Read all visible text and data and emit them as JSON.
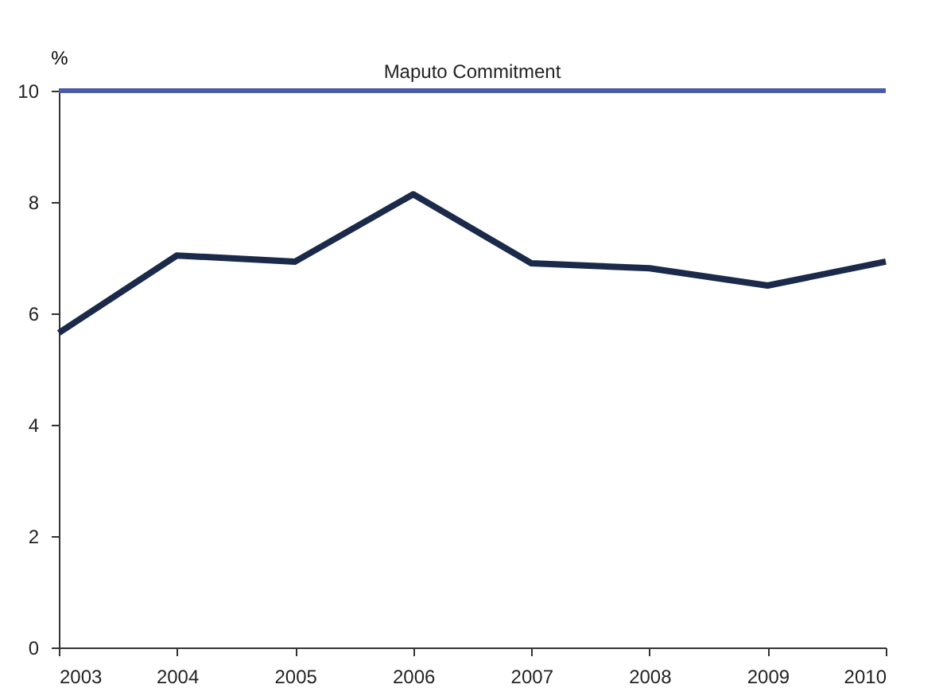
{
  "chart_data": {
    "type": "line",
    "ylabel": "%",
    "x": [
      2003,
      2004,
      2005,
      2006,
      2007,
      2008,
      2009,
      2010
    ],
    "series": [
      {
        "color": "#1b2a4a",
        "values": [
          5.65,
          7.04,
          6.93,
          8.14,
          6.9,
          6.81,
          6.5,
          6.93
        ]
      }
    ],
    "xlim": [
      2003,
      2010
    ],
    "xticks": [
      2003,
      2004,
      2005,
      2006,
      2007,
      2008,
      2009,
      2010
    ],
    "ylim": [
      0,
      10
    ],
    "yticks": [
      0,
      2,
      4,
      6,
      8,
      10
    ],
    "ref_lines": [
      {
        "axis": "y",
        "value": 10,
        "label": "Maputo Commitment",
        "color": "#4a5aa8"
      }
    ],
    "grid": false,
    "line_style": "solid"
  }
}
